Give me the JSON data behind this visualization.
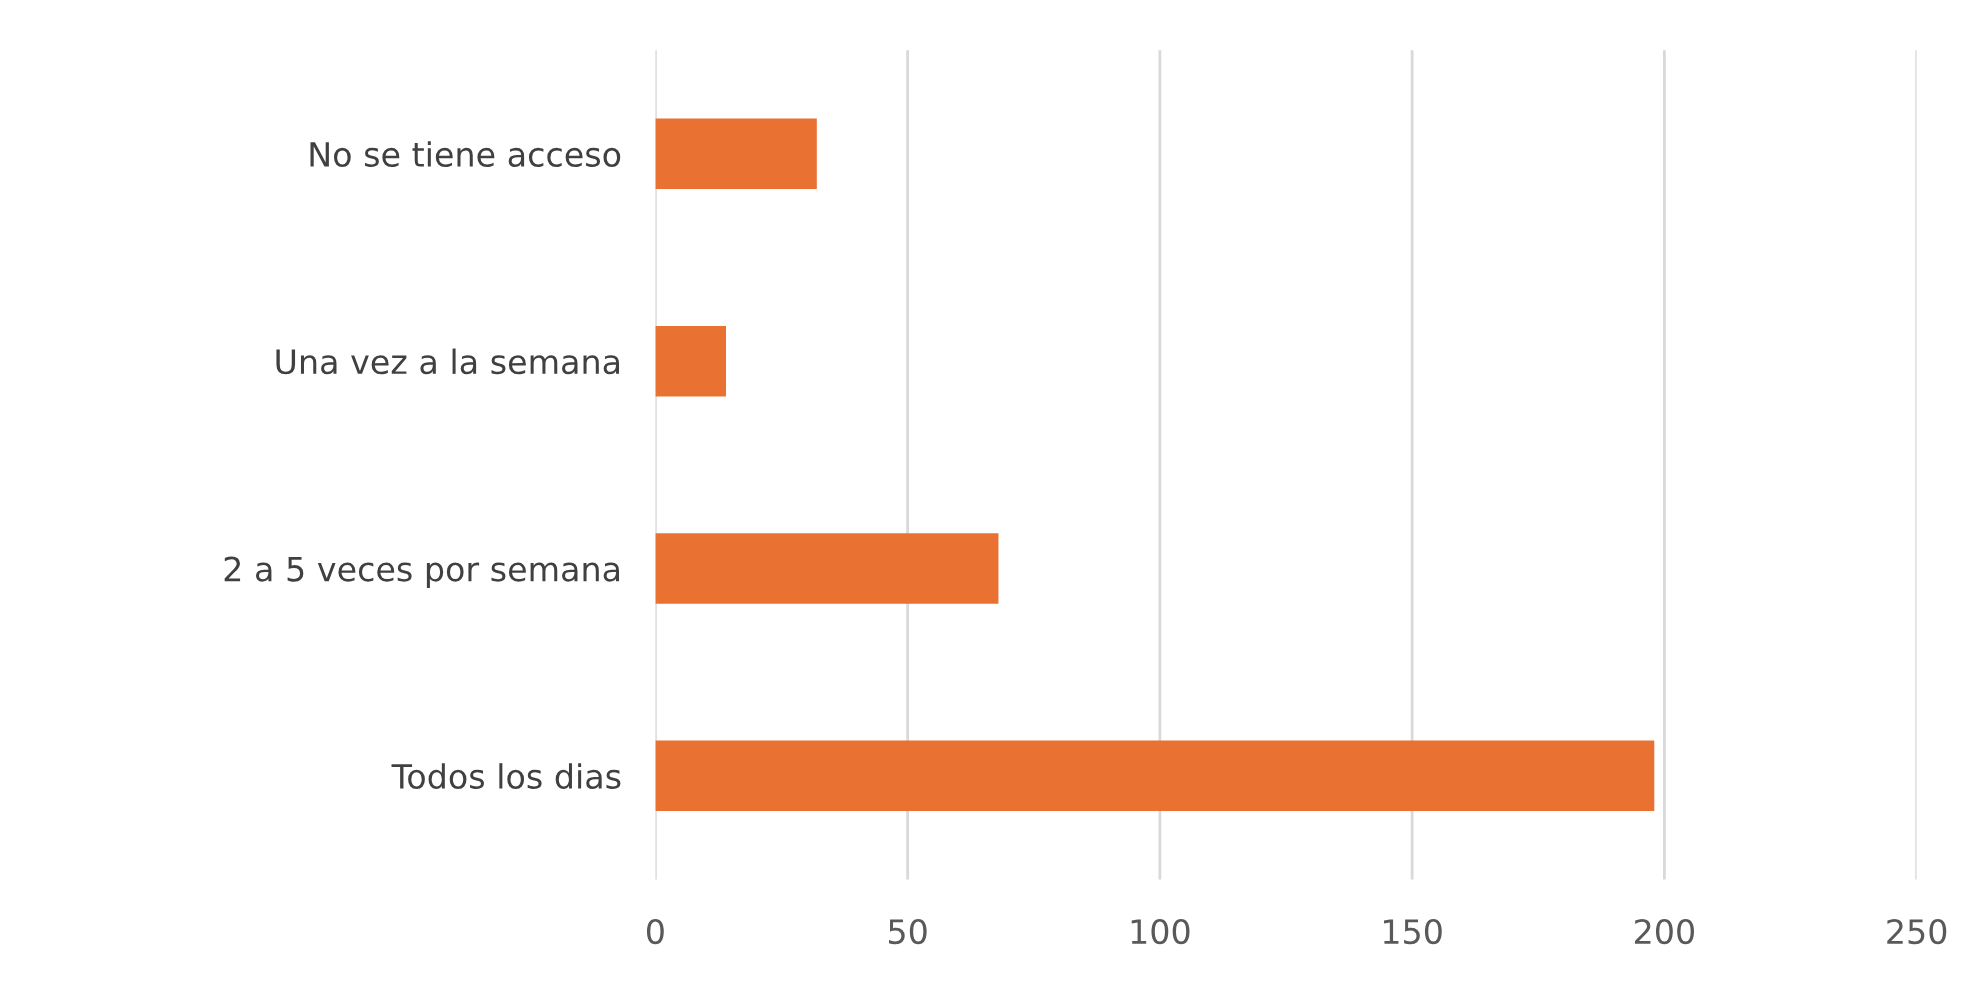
{
  "chart_data": {
    "type": "bar",
    "orientation": "horizontal",
    "categories": [
      "No se tiene acceso",
      "Una vez a la semana",
      "2 a 5 veces por semana",
      "Todos los dias"
    ],
    "values": [
      32,
      14,
      68,
      198
    ],
    "color": "#e97132",
    "xlim": [
      0,
      250
    ],
    "xticks": [
      0,
      50,
      100,
      150,
      200,
      250
    ],
    "grid": "x",
    "legend": false
  }
}
